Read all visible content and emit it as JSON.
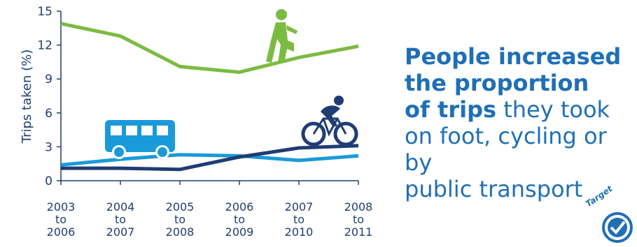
{
  "chart_data": {
    "type": "line",
    "title": "",
    "xlabel": "",
    "ylabel": "Trips taken (%)",
    "ylim": [
      0,
      15
    ],
    "yticks": [
      "0",
      "3",
      "6",
      "9",
      "12",
      "15"
    ],
    "categories": [
      [
        "2003",
        "to",
        "2006"
      ],
      [
        "2004",
        "to",
        "2007"
      ],
      [
        "2005",
        "to",
        "2008"
      ],
      [
        "2006",
        "to",
        "2009"
      ],
      [
        "2007",
        "to",
        "2010"
      ],
      [
        "2008",
        "to",
        "2011"
      ]
    ],
    "grid": false,
    "legend": "none",
    "series": [
      {
        "icon": "walking-person-icon",
        "color": "#7cbb42",
        "values": [
          13.9,
          12.8,
          10.1,
          9.6,
          10.9,
          11.9
        ]
      },
      {
        "icon": "bus-icon",
        "color": "#1a9ad9",
        "values": [
          1.4,
          1.9,
          2.3,
          2.2,
          1.8,
          2.2
        ]
      },
      {
        "icon": "cyclist-icon",
        "color": "#1f3d73",
        "values": [
          1.1,
          1.1,
          1.0,
          2.1,
          2.9,
          3.1
        ]
      }
    ]
  },
  "headline": {
    "line1": "People increased",
    "line2": "the proportion",
    "line3_bold": "of trips",
    "line3_rest": " they took",
    "line4": "on foot, cycling or by",
    "line5": "public transport"
  },
  "badge": {
    "label": "Target",
    "icon": "checkmark-icon",
    "color": "#1f6fb5"
  }
}
